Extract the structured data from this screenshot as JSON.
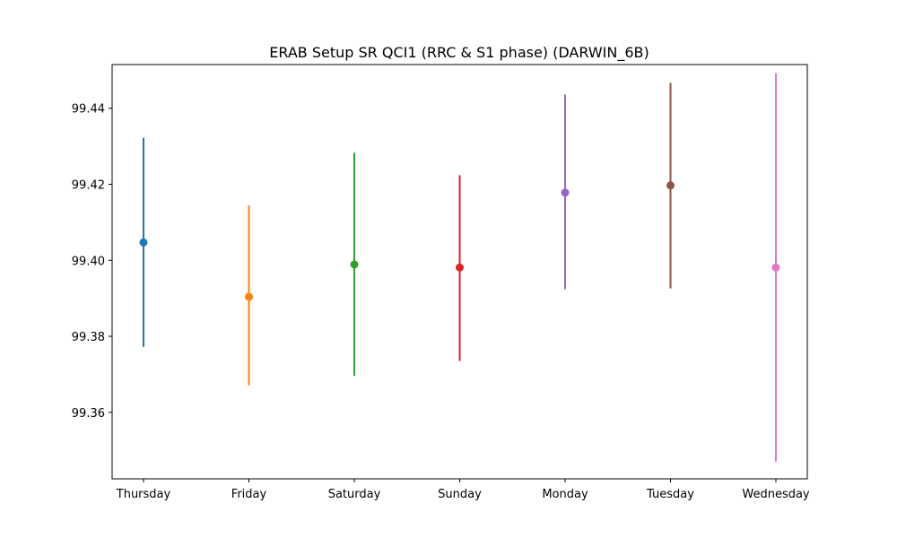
{
  "chart_data": {
    "type": "scatter",
    "title": "ERAB Setup SR QCI1 (RRC & S1 phase) (DARWIN_6B)",
    "xlabel": "",
    "ylabel": "",
    "categories": [
      "Thursday",
      "Friday",
      "Saturday",
      "Sunday",
      "Monday",
      "Tuesday",
      "Wednesday"
    ],
    "values": [
      99.4047,
      99.3904,
      99.3989,
      99.3981,
      99.4178,
      99.4197,
      99.3981
    ],
    "err_low": [
      99.3772,
      99.3671,
      99.3696,
      99.3735,
      99.3924,
      99.3926,
      99.347
    ],
    "err_high": [
      99.4322,
      99.4144,
      99.4283,
      99.4224,
      99.4436,
      99.4467,
      99.4492
    ],
    "colors": [
      "#1f77b4",
      "#ff7f0e",
      "#2ca02c",
      "#d62728",
      "#9467bd",
      "#8c564b",
      "#e377c2"
    ],
    "yticks": [
      99.36,
      99.38,
      99.4,
      99.42,
      99.44
    ],
    "ytick_labels": [
      "99.36",
      "99.38",
      "99.40",
      "99.42",
      "99.44"
    ],
    "ylim": [
      99.3425,
      99.4515
    ],
    "grid": false,
    "legend": "none"
  }
}
